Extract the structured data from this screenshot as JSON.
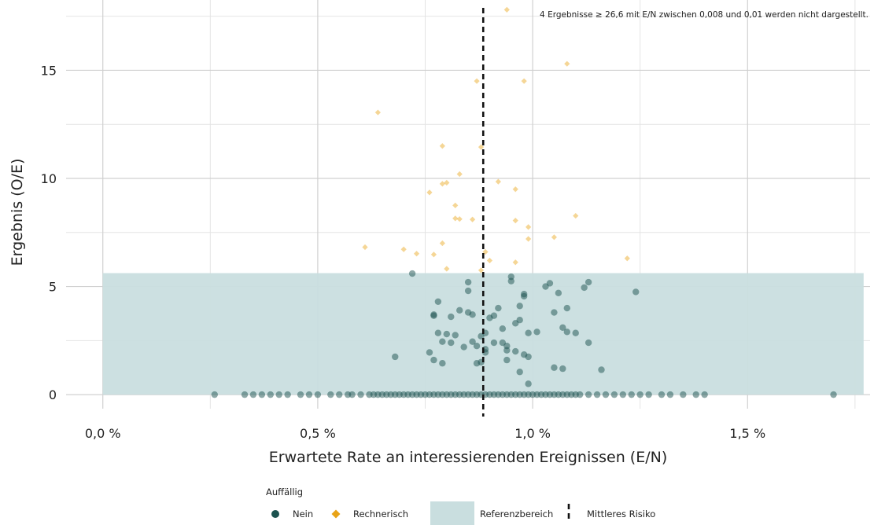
{
  "colors": {
    "nein": "#1b524f",
    "rechnerisch": "#e8a317",
    "referenzbereich": "#c9dedf",
    "grid_major": "#d0d0d0",
    "grid_minor": "#e4e4e4",
    "median_line": "#111111"
  },
  "chart_data": {
    "type": "scatter",
    "title": "",
    "xlabel": "Erwartete Rate an interessierenden Ereignissen (E/N)",
    "ylabel": "Ergebnis (O/E)",
    "x_unit": "percent",
    "xlim": [
      -0.0855,
      1.785
    ],
    "ylim": [
      -0.65,
      18.25
    ],
    "x_ticks": [
      0.0,
      0.5,
      1.0,
      1.5
    ],
    "x_tick_labels": [
      "0,0 %",
      "0,5 %",
      "1,0 %",
      "1,5 %"
    ],
    "y_ticks": [
      0,
      5,
      10,
      15
    ],
    "y_tick_labels": [
      "0",
      "5",
      "10",
      "15"
    ],
    "grid": true,
    "reference_range": {
      "x": [
        0.0,
        1.77
      ],
      "y": [
        0.0,
        5.62
      ],
      "label": "Referenzbereich"
    },
    "mean_risk_line": {
      "x": 0.885,
      "label": "Mittleres Risiko"
    },
    "note": "4 Ergebnisse ≥ 26,6 mit E/N zwischen 0,008 und 0,01 werden nicht dargestellt.",
    "legend": {
      "title": "Auffällig",
      "placement": "bottom",
      "items": [
        {
          "label": "Nein",
          "shape": "circle"
        },
        {
          "label": "Rechnerisch",
          "shape": "diamond"
        },
        {
          "label": "Referenzbereich",
          "shape": "rect"
        },
        {
          "label": "Mittleres Risiko",
          "shape": "dashed-line"
        }
      ]
    },
    "series": [
      {
        "name": "Rechnerisch",
        "points": [
          [
            0.64,
            13.05
          ],
          [
            0.61,
            6.82
          ],
          [
            0.7,
            6.72
          ],
          [
            0.73,
            6.52
          ],
          [
            0.76,
            9.35
          ],
          [
            0.77,
            6.48
          ],
          [
            0.79,
            11.5
          ],
          [
            0.79,
            9.75
          ],
          [
            0.79,
            7.0
          ],
          [
            0.8,
            5.82
          ],
          [
            0.8,
            9.8
          ],
          [
            0.82,
            8.75
          ],
          [
            0.82,
            8.15
          ],
          [
            0.83,
            8.12
          ],
          [
            0.83,
            10.2
          ],
          [
            0.86,
            8.1
          ],
          [
            0.87,
            14.5
          ],
          [
            0.88,
            11.45
          ],
          [
            0.88,
            5.75
          ],
          [
            0.89,
            6.6
          ],
          [
            0.9,
            6.2
          ],
          [
            0.92,
            9.85
          ],
          [
            0.94,
            17.8
          ],
          [
            0.96,
            9.5
          ],
          [
            0.96,
            8.05
          ],
          [
            0.96,
            6.12
          ],
          [
            0.98,
            14.5
          ],
          [
            0.99,
            7.75
          ],
          [
            0.99,
            7.2
          ],
          [
            1.05,
            7.28
          ],
          [
            1.08,
            15.3
          ],
          [
            1.1,
            8.27
          ],
          [
            1.22,
            6.3
          ]
        ]
      },
      {
        "name": "Nein",
        "points": [
          [
            0.72,
            5.6
          ],
          [
            0.68,
            1.75
          ],
          [
            0.77,
            3.65
          ],
          [
            0.77,
            3.7
          ],
          [
            0.78,
            2.85
          ],
          [
            0.78,
            4.3
          ],
          [
            0.79,
            2.45
          ],
          [
            0.79,
            1.45
          ],
          [
            0.77,
            1.6
          ],
          [
            0.76,
            1.95
          ],
          [
            0.8,
            2.8
          ],
          [
            0.81,
            3.6
          ],
          [
            0.81,
            2.4
          ],
          [
            0.82,
            2.75
          ],
          [
            0.83,
            3.9
          ],
          [
            0.84,
            2.2
          ],
          [
            0.85,
            5.2
          ],
          [
            0.85,
            4.8
          ],
          [
            0.85,
            3.8
          ],
          [
            0.86,
            3.7
          ],
          [
            0.86,
            2.45
          ],
          [
            0.87,
            2.25
          ],
          [
            0.87,
            1.45
          ],
          [
            0.88,
            1.5
          ],
          [
            0.88,
            2.7
          ],
          [
            0.89,
            1.95
          ],
          [
            0.89,
            2.85
          ],
          [
            0.89,
            2.1
          ],
          [
            0.9,
            3.55
          ],
          [
            0.91,
            3.65
          ],
          [
            0.91,
            2.4
          ],
          [
            0.92,
            4.0
          ],
          [
            0.93,
            2.4
          ],
          [
            0.93,
            3.05
          ],
          [
            0.94,
            2.05
          ],
          [
            0.94,
            1.6
          ],
          [
            0.94,
            2.25
          ],
          [
            0.95,
            5.45
          ],
          [
            0.95,
            5.25
          ],
          [
            0.96,
            3.3
          ],
          [
            0.96,
            2.0
          ],
          [
            0.97,
            1.05
          ],
          [
            0.97,
            3.45
          ],
          [
            0.97,
            4.1
          ],
          [
            0.98,
            4.55
          ],
          [
            0.98,
            4.65
          ],
          [
            0.98,
            1.85
          ],
          [
            0.99,
            1.75
          ],
          [
            0.99,
            0.5
          ],
          [
            0.99,
            2.85
          ],
          [
            1.01,
            2.9
          ],
          [
            1.03,
            5.0
          ],
          [
            1.04,
            5.15
          ],
          [
            1.05,
            3.8
          ],
          [
            1.05,
            1.25
          ],
          [
            1.06,
            4.7
          ],
          [
            1.07,
            3.1
          ],
          [
            1.07,
            1.2
          ],
          [
            1.08,
            2.9
          ],
          [
            1.08,
            4.0
          ],
          [
            1.1,
            2.85
          ],
          [
            1.12,
            4.95
          ],
          [
            1.13,
            5.2
          ],
          [
            1.13,
            2.4
          ],
          [
            1.16,
            1.15
          ],
          [
            1.24,
            4.75
          ],
          [
            0.26,
            0
          ],
          [
            0.33,
            0
          ],
          [
            0.35,
            0
          ],
          [
            0.37,
            0
          ],
          [
            0.39,
            0
          ],
          [
            0.41,
            0
          ],
          [
            0.43,
            0
          ],
          [
            0.46,
            0
          ],
          [
            0.48,
            0
          ],
          [
            0.5,
            0
          ],
          [
            0.53,
            0
          ],
          [
            0.55,
            0
          ],
          [
            0.57,
            0
          ],
          [
            0.58,
            0
          ],
          [
            0.6,
            0
          ],
          [
            0.62,
            0
          ],
          [
            0.63,
            0
          ],
          [
            0.64,
            0
          ],
          [
            0.65,
            0
          ],
          [
            0.66,
            0
          ],
          [
            0.67,
            0
          ],
          [
            0.68,
            0
          ],
          [
            0.69,
            0
          ],
          [
            0.7,
            0
          ],
          [
            0.71,
            0
          ],
          [
            0.72,
            0
          ],
          [
            0.73,
            0
          ],
          [
            0.74,
            0
          ],
          [
            0.75,
            0
          ],
          [
            0.76,
            0
          ],
          [
            0.77,
            0
          ],
          [
            0.78,
            0
          ],
          [
            0.79,
            0
          ],
          [
            0.8,
            0
          ],
          [
            0.81,
            0
          ],
          [
            0.82,
            0
          ],
          [
            0.83,
            0
          ],
          [
            0.84,
            0
          ],
          [
            0.85,
            0
          ],
          [
            0.86,
            0
          ],
          [
            0.87,
            0
          ],
          [
            0.88,
            0
          ],
          [
            0.89,
            0
          ],
          [
            0.9,
            0
          ],
          [
            0.91,
            0
          ],
          [
            0.92,
            0
          ],
          [
            0.93,
            0
          ],
          [
            0.94,
            0
          ],
          [
            0.95,
            0
          ],
          [
            0.96,
            0
          ],
          [
            0.97,
            0
          ],
          [
            0.98,
            0
          ],
          [
            0.99,
            0
          ],
          [
            1.0,
            0
          ],
          [
            1.01,
            0
          ],
          [
            1.02,
            0
          ],
          [
            1.03,
            0
          ],
          [
            1.04,
            0
          ],
          [
            1.05,
            0
          ],
          [
            1.06,
            0
          ],
          [
            1.07,
            0
          ],
          [
            1.08,
            0
          ],
          [
            1.09,
            0
          ],
          [
            1.1,
            0
          ],
          [
            1.11,
            0
          ],
          [
            1.13,
            0
          ],
          [
            1.15,
            0
          ],
          [
            1.17,
            0
          ],
          [
            1.19,
            0
          ],
          [
            1.21,
            0
          ],
          [
            1.23,
            0
          ],
          [
            1.25,
            0
          ],
          [
            1.27,
            0
          ],
          [
            1.3,
            0
          ],
          [
            1.32,
            0
          ],
          [
            1.35,
            0
          ],
          [
            1.38,
            0
          ],
          [
            1.4,
            0
          ],
          [
            1.7,
            0
          ]
        ]
      }
    ]
  }
}
